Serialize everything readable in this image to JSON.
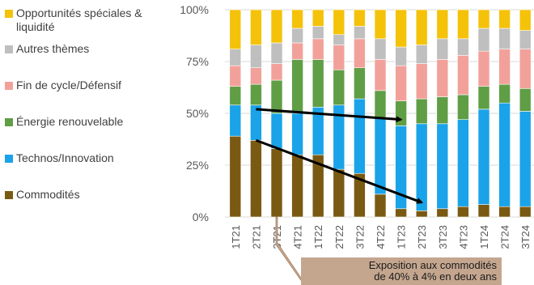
{
  "colors": {
    "Commodités": "#7a5a12",
    "Technos/Innovation": "#1aa3e8",
    "Énergie renouvelable": "#5f9e45",
    "Fin de cycle/Défensif": "#f2a19a",
    "Autres thèmes": "#bfbfbf",
    "Opportunités spéciales & liquidité": "#f5c20a"
  },
  "legend": [
    {
      "label": "Opportunités spéciales & liquidité",
      "color": "#f5c20a"
    },
    {
      "label": "Autres thèmes",
      "color": "#bfbfbf"
    },
    {
      "label": "Fin de cycle/Défensif",
      "color": "#f2a19a"
    },
    {
      "label": "Énergie renouvelable",
      "color": "#5f9e45"
    },
    {
      "label": "Technos/Innovation",
      "color": "#1aa3e8"
    },
    {
      "label": "Commodités",
      "color": "#7a5a12"
    }
  ],
  "callout": {
    "line1": "Exposition aux commodités",
    "line2": "de 40% à 4% en deux ans"
  },
  "chart_data": {
    "type": "bar",
    "stacked": true,
    "categories": [
      "1T21",
      "2T21",
      "3T21",
      "4T21",
      "1T22",
      "2T22",
      "3T22",
      "4T22",
      "1T23",
      "2T23",
      "3T23",
      "4T23",
      "1T24",
      "2T24",
      "3T24"
    ],
    "ylim": [
      0,
      100
    ],
    "yticks": [
      "0%",
      "25%",
      "50%",
      "75%",
      "100%"
    ],
    "grid": true,
    "legend_position": "left",
    "series": [
      {
        "name": "Commodités",
        "values": [
          39,
          37,
          33,
          30,
          30,
          23,
          21,
          11,
          4,
          3,
          4,
          5,
          6,
          5,
          5
        ]
      },
      {
        "name": "Technos/Innovation",
        "values": [
          15,
          17,
          17,
          20,
          23,
          31,
          36,
          37,
          40,
          42,
          41,
          42,
          46,
          50,
          46
        ]
      },
      {
        "name": "Énergie renouvelable",
        "values": [
          9,
          10,
          16,
          26,
          23,
          17,
          15,
          13,
          12,
          12,
          13,
          12,
          11,
          9,
          11
        ]
      },
      {
        "name": "Fin de cycle/Défensif",
        "values": [
          10,
          8,
          8,
          8,
          10,
          12,
          14,
          15,
          17,
          17,
          18,
          19,
          17,
          17,
          19
        ]
      },
      {
        "name": "Autres thèmes",
        "values": [
          8,
          11,
          10,
          7,
          6,
          5,
          6,
          10,
          9,
          9,
          10,
          8,
          11,
          10,
          9
        ]
      },
      {
        "name": "Opportunités spéciales & liquidité",
        "values": [
          19,
          17,
          16,
          9,
          8,
          12,
          8,
          14,
          18,
          17,
          14,
          14,
          9,
          9,
          10
        ]
      }
    ],
    "annotations": [
      {
        "type": "arrow",
        "from": {
          "x": "2T21",
          "y": 52
        },
        "to": {
          "x": "1T23",
          "y": 47
        }
      },
      {
        "type": "arrow",
        "from": {
          "x": "2T21",
          "y": 37
        },
        "to": {
          "x": "2T23",
          "y": 7
        }
      },
      {
        "type": "callout",
        "x": "3T21",
        "text": "Exposition aux commodités de 40% à 4% en deux ans"
      }
    ]
  }
}
